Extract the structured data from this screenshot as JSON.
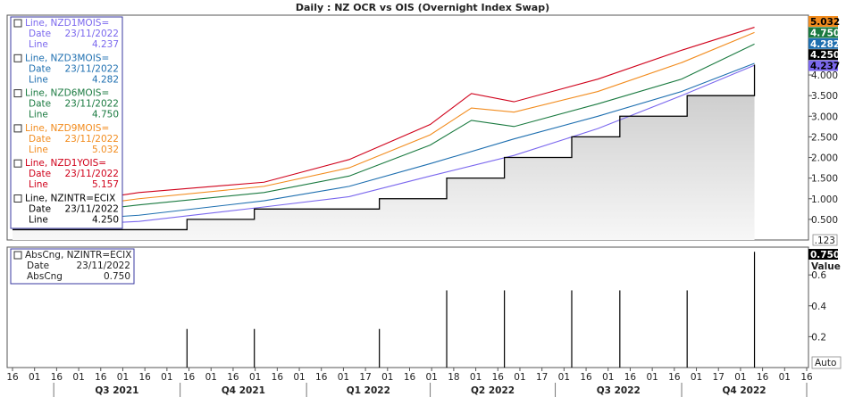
{
  "chart_data": [
    {
      "panel": "main",
      "type": "line",
      "title": "Daily : NZ OCR vs OIS (Overnight Index Swap)",
      "ylim": [
        0.0,
        5.45
      ],
      "y_ticks": [
        "0.500",
        "1.000",
        "1.500",
        "2.000",
        "2.500",
        "3.000",
        "3.500",
        "4.000"
      ],
      "scale_label": ".123",
      "series": [
        {
          "name": "Line, NZD1MOIS=",
          "color": "#7b68ee",
          "date": "23/11/2022",
          "value": "4.237",
          "x": [
            "2021-06-01",
            "2021-09-01",
            "2021-12-01",
            "2022-02-01",
            "2022-04-01",
            "2022-06-01",
            "2022-08-01",
            "2022-10-01",
            "2022-11-23"
          ],
          "y": [
            0.3,
            0.45,
            0.8,
            1.05,
            1.55,
            2.05,
            2.7,
            3.5,
            4.237
          ]
        },
        {
          "name": "Line, NZD3MOIS=",
          "color": "#1e6fb0",
          "date": "23/11/2022",
          "value": "4.282",
          "x": [
            "2021-06-01",
            "2021-09-01",
            "2021-12-01",
            "2022-02-01",
            "2022-04-01",
            "2022-06-01",
            "2022-08-01",
            "2022-10-01",
            "2022-11-23"
          ],
          "y": [
            0.4,
            0.6,
            0.95,
            1.3,
            1.85,
            2.45,
            3.0,
            3.6,
            4.282
          ]
        },
        {
          "name": "Line, NZD6MOIS=",
          "color": "#1a7a40",
          "date": "23/11/2022",
          "value": "4.750",
          "x": [
            "2021-06-01",
            "2021-09-01",
            "2021-12-01",
            "2022-02-01",
            "2022-04-01",
            "2022-05-01",
            "2022-06-01",
            "2022-08-01",
            "2022-10-01",
            "2022-11-23"
          ],
          "y": [
            0.5,
            0.85,
            1.15,
            1.55,
            2.3,
            2.9,
            2.75,
            3.3,
            3.9,
            4.75
          ]
        },
        {
          "name": "Line, NZD9MOIS=",
          "color": "#f28c1e",
          "date": "23/11/2022",
          "value": "5.032",
          "x": [
            "2021-06-01",
            "2021-09-01",
            "2021-12-01",
            "2022-02-01",
            "2022-04-01",
            "2022-05-01",
            "2022-06-01",
            "2022-08-01",
            "2022-10-01",
            "2022-11-23"
          ],
          "y": [
            0.6,
            1.0,
            1.3,
            1.75,
            2.55,
            3.2,
            3.1,
            3.6,
            4.3,
            5.032
          ]
        },
        {
          "name": "Line, NZD1YOIS=",
          "color": "#d0021b",
          "date": "23/11/2022",
          "value": "5.157",
          "x": [
            "2021-06-01",
            "2021-09-01",
            "2021-12-01",
            "2022-02-01",
            "2022-04-01",
            "2022-05-01",
            "2022-06-01",
            "2022-08-01",
            "2022-10-01",
            "2022-11-23"
          ],
          "y": [
            0.7,
            1.15,
            1.4,
            1.95,
            2.8,
            3.55,
            3.35,
            3.9,
            4.6,
            5.157
          ]
        },
        {
          "name": "Line, NZINTR=ECIX",
          "color": "#000000",
          "date": "23/11/2022",
          "value": "4.250",
          "x": [
            "2021-06-01",
            "2021-10-06",
            "2021-11-24",
            "2022-02-23",
            "2022-04-13",
            "2022-05-25",
            "2022-07-13",
            "2022-08-17",
            "2022-10-05",
            "2022-11-23"
          ],
          "y": [
            0.25,
            0.5,
            0.75,
            1.0,
            1.5,
            2.0,
            2.5,
            3.0,
            3.5,
            4.25
          ]
        }
      ],
      "last_value_badges": [
        {
          "text": "5.032",
          "bg": "#f28c1e",
          "fg": "#000000",
          "value": 5.032
        },
        {
          "text": "4.750",
          "bg": "#1a7a40",
          "fg": "#ffffff",
          "value": 4.75
        },
        {
          "text": "4.282",
          "bg": "#1e6fb0",
          "fg": "#ffffff",
          "value": 4.282
        },
        {
          "text": "4.250",
          "bg": "#000000",
          "fg": "#ffffff",
          "value": 4.25
        },
        {
          "text": "4.237",
          "bg": "#7b68ee",
          "fg": "#000000",
          "value": 4.237
        }
      ],
      "legend_labels": {
        "date": "Date",
        "line": "Line"
      }
    },
    {
      "panel": "lower",
      "type": "bar",
      "series_name": "AbsCng, NZINTR=ECIX",
      "date": "23/11/2022",
      "value_label": "AbsCng",
      "value": "0.750",
      "axis_title": "Value",
      "ylim": [
        0,
        0.78
      ],
      "y_ticks": [
        "0.2",
        "0.4",
        "0.6"
      ],
      "badge": "0.750",
      "x": [
        "2021-10-06",
        "2021-11-24",
        "2022-02-23",
        "2022-04-13",
        "2022-05-25",
        "2022-07-13",
        "2022-08-17",
        "2022-10-05",
        "2022-11-23"
      ],
      "values": [
        0.25,
        0.25,
        0.25,
        0.5,
        0.5,
        0.5,
        0.5,
        0.5,
        0.75
      ]
    }
  ],
  "x_axis": {
    "auto_label": "Auto",
    "days": [
      "16",
      "01",
      "16",
      "01",
      "16",
      "01",
      "16",
      "01",
      "16",
      "01",
      "16",
      "01",
      "16",
      "01",
      "16",
      "01",
      "17",
      "01",
      "16",
      "01",
      "18",
      "01",
      "16",
      "01",
      "17",
      "01",
      "16",
      "01",
      "16",
      "01",
      "16",
      "01",
      "17",
      "01",
      "16",
      "01",
      "16"
    ],
    "quarters": [
      "Q3 2021",
      "Q4 2021",
      "Q1 2022",
      "Q2 2022",
      "Q3 2022",
      "Q4 2022"
    ]
  }
}
